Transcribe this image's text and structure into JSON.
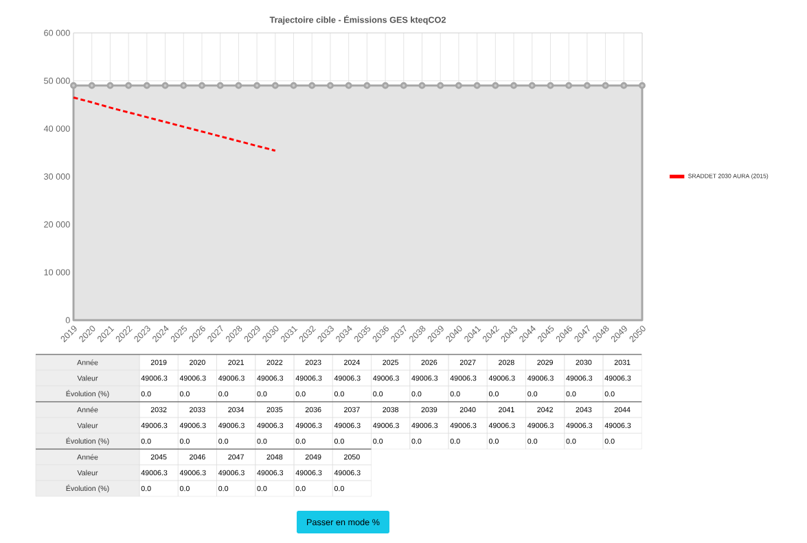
{
  "chart_data": {
    "type": "area",
    "title": "Trajectoire cible - Émissions GES kteqCO2",
    "categories": [
      "2019",
      "2020",
      "2021",
      "2022",
      "2023",
      "2024",
      "2025",
      "2026",
      "2027",
      "2028",
      "2029",
      "2030",
      "2031",
      "2032",
      "2033",
      "2034",
      "2035",
      "2036",
      "2037",
      "2038",
      "2039",
      "2040",
      "2041",
      "2042",
      "2043",
      "2044",
      "2045",
      "2046",
      "2047",
      "2048",
      "2049",
      "2050"
    ],
    "ylim": [
      0,
      60000
    ],
    "yticks": [
      {
        "value": 0,
        "label": "0"
      },
      {
        "value": 10000,
        "label": "10 000"
      },
      {
        "value": 20000,
        "label": "20 000"
      },
      {
        "value": 30000,
        "label": "30 000"
      },
      {
        "value": 40000,
        "label": "40 000"
      },
      {
        "value": 50000,
        "label": "50 000"
      },
      {
        "value": 60000,
        "label": "60 000"
      }
    ],
    "grid": true,
    "legend": "right",
    "series": [
      {
        "color": "#a6a6a6",
        "marker": "circle",
        "values": [
          49006.3,
          49006.3,
          49006.3,
          49006.3,
          49006.3,
          49006.3,
          49006.3,
          49006.3,
          49006.3,
          49006.3,
          49006.3,
          49006.3,
          49006.3,
          49006.3,
          49006.3,
          49006.3,
          49006.3,
          49006.3,
          49006.3,
          49006.3,
          49006.3,
          49006.3,
          49006.3,
          49006.3,
          49006.3,
          49006.3,
          49006.3,
          49006.3,
          49006.3,
          49006.3,
          49006.3,
          49006.3
        ]
      },
      {
        "name": "SRADDET 2030 AURA (2015)",
        "type": "line",
        "color": "#ff0000",
        "line_style": "dashed",
        "marker": "none",
        "values": [
          46500,
          45500,
          44400,
          43400,
          42400,
          41400,
          40400,
          39400,
          38400,
          37400,
          36400,
          35400,
          null,
          null,
          null,
          null,
          null,
          null,
          null,
          null,
          null,
          null,
          null,
          null,
          null,
          null,
          null,
          null,
          null,
          null,
          null,
          null
        ]
      }
    ],
    "annotations": [
      "Année",
      "Valeur",
      "Évolution (%)",
      "Passer en mode %",
      "49006.3",
      "49006.3",
      "49006.3",
      "49006.3",
      "49006.3",
      "49006.3",
      "49006.3",
      "49006.3",
      "49006.3",
      "49006.3",
      "49006.3",
      "49006.3",
      "49006.3",
      "49006.3",
      "49006.3",
      "49006.3",
      "49006.3",
      "49006.3",
      "49006.3",
      "49006.3",
      "49006.3",
      "49006.3",
      "49006.3",
      "49006.3",
      "49006.3",
      "49006.3",
      "49006.3",
      "49006.3",
      "49006.3",
      "49006.3",
      "49006.3",
      "49006.3",
      "0.0",
      "0.0",
      "0.0",
      "0.0",
      "0.0",
      "0.0",
      "0.0",
      "0.0",
      "0.0",
      "0.0",
      "0.0",
      "0.0",
      "0.0",
      "0.0",
      "0.0",
      "0.0",
      "0.0",
      "0.0",
      "0.0",
      "0.0",
      "0.0",
      "0.0",
      "0.0",
      "0.0",
      "0.0",
      "0.0",
      "0.0",
      "0.0",
      "0.0",
      "0.0",
      "0.0",
      "0.0"
    ]
  }
}
